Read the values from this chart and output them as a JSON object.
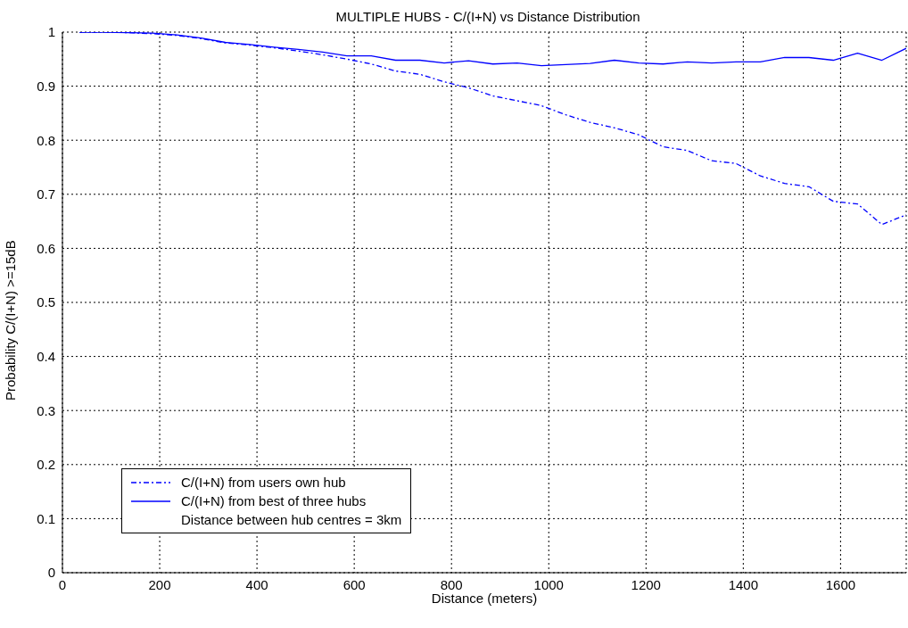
{
  "chart_data": {
    "type": "line",
    "title": "MULTIPLE HUBS - C/(I+N) vs Distance Distribution",
    "xlabel": "Distance (meters)",
    "ylabel": "Probability C/(I+N) >=15dB",
    "x": [
      35,
      85,
      135,
      185,
      235,
      285,
      335,
      385,
      435,
      485,
      535,
      585,
      635,
      685,
      735,
      785,
      835,
      885,
      935,
      985,
      1035,
      1085,
      1135,
      1185,
      1235,
      1285,
      1335,
      1385,
      1435,
      1485,
      1535,
      1585,
      1635,
      1685,
      1735
    ],
    "series": [
      {
        "name": "C/(I+N) from users own hub",
        "color": "#0000ff",
        "line_style": "dashed",
        "values": [
          1.0,
          1.0,
          0.999,
          0.997,
          0.994,
          0.988,
          0.98,
          0.976,
          0.971,
          0.965,
          0.958,
          0.95,
          0.941,
          0.928,
          0.922,
          0.908,
          0.897,
          0.882,
          0.873,
          0.864,
          0.847,
          0.833,
          0.823,
          0.81,
          0.788,
          0.781,
          0.762,
          0.757,
          0.734,
          0.72,
          0.714,
          0.687,
          0.682,
          0.644,
          0.662
        ]
      },
      {
        "name": "C/(I+N) from best of three hubs",
        "color": "#0000ff",
        "line_style": "solid",
        "values": [
          1.0,
          1.0,
          0.999,
          0.998,
          0.995,
          0.989,
          0.981,
          0.977,
          0.972,
          0.968,
          0.963,
          0.956,
          0.956,
          0.948,
          0.948,
          0.943,
          0.947,
          0.941,
          0.943,
          0.938,
          0.94,
          0.942,
          0.948,
          0.943,
          0.941,
          0.945,
          0.943,
          0.945,
          0.945,
          0.953,
          0.953,
          0.948,
          0.961,
          0.948,
          0.97
        ]
      }
    ],
    "annotations": [
      "Distance between hub centres = 3km"
    ],
    "xlim": [
      0,
      1735
    ],
    "xticks": [
      0,
      200,
      400,
      600,
      800,
      1000,
      1200,
      1400,
      1600
    ],
    "ylim": [
      0,
      1
    ],
    "yticks": [
      0,
      0.1,
      0.2,
      0.3,
      0.4,
      0.5,
      0.6,
      0.7,
      0.8,
      0.9,
      1
    ],
    "grid": true,
    "legend": "bottom left",
    "marker": "none"
  }
}
